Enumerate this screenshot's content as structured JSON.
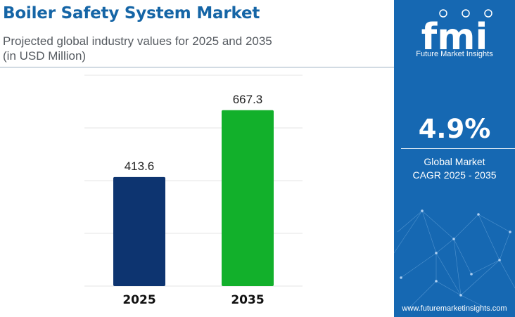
{
  "header": {
    "title": "Boiler Safety System Market",
    "subtitle_line1": "Projected global industry values for 2025 and 2035",
    "subtitle_line2": "(in USD Million)"
  },
  "chart_data": {
    "type": "bar",
    "categories": [
      "2025",
      "2035"
    ],
    "values": [
      413.6,
      667.3
    ],
    "data_labels": [
      "413.6",
      "667.3"
    ],
    "colors": [
      "#0d3470",
      "#12b02b"
    ],
    "ylim": [
      0,
      800
    ],
    "grid": true,
    "legend": "none"
  },
  "panel": {
    "logo_text": "fmi",
    "brand": "Future Market Insights",
    "cagr_value": "4.9%",
    "cagr_line1": "Global Market",
    "cagr_line2": "CAGR 2025 - 2035",
    "url": "www.futuremarketinsights.com",
    "background_color": "#1668b2"
  }
}
